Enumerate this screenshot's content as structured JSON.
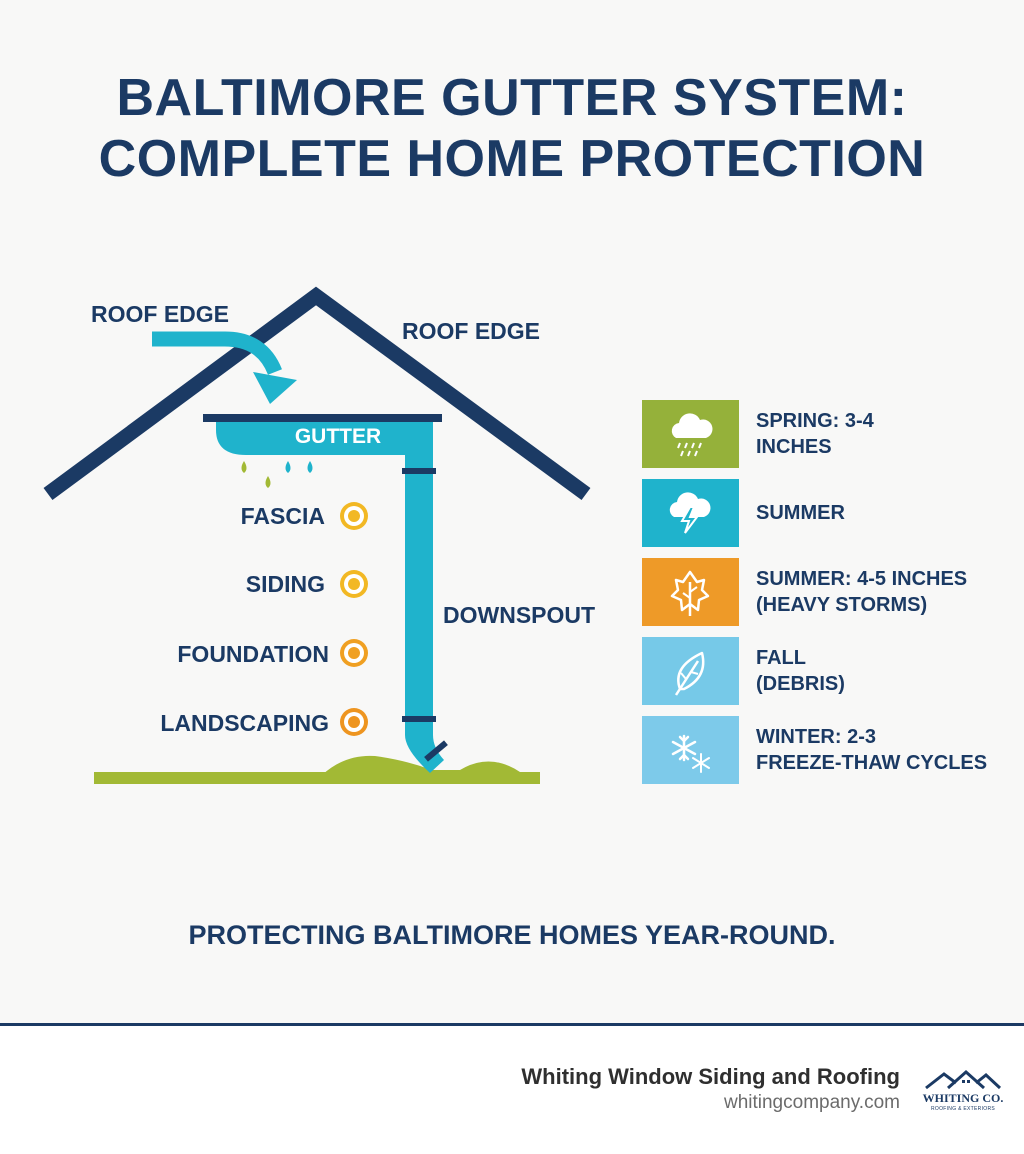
{
  "title": {
    "line1": "BALTIMORE GUTTER SYSTEM:",
    "line2": "COMPLETE HOME PROTECTION"
  },
  "diagram": {
    "labels": {
      "roof_edge_left": "ROOF EDGE",
      "roof_edge_right": "ROOF EDGE",
      "gutter": "GUTTER",
      "downspout": "DOWNSPOUT"
    },
    "protected_items": [
      {
        "label": "FASCIA",
        "color": "#f2b824"
      },
      {
        "label": "SIDING",
        "color": "#f2b824"
      },
      {
        "label": "FOUNDATION",
        "color": "#f0a022"
      },
      {
        "label": "LANDSCAPING",
        "color": "#ee9520"
      }
    ],
    "colors": {
      "roof": "#1b3a64",
      "gutter": "#1fb3cc",
      "ground": "#a2b935",
      "drops": [
        "#a2b935",
        "#1fb3cc"
      ]
    }
  },
  "seasons": [
    {
      "line1": "SPRING: 3-4",
      "line2": "INCHES",
      "icon": "rain-cloud-icon",
      "color": "#95b13a"
    },
    {
      "line1": "SUMMER",
      "line2": "",
      "icon": "storm-cloud-icon",
      "color": "#1fb3cc"
    },
    {
      "line1": "SUMMER: 4-5 INCHES",
      "line2": "(HEAVY STORMS)",
      "icon": "autumn-leaf-icon",
      "color": "#ee9a28"
    },
    {
      "line1": "FALL",
      "line2": "(DEBRIS)",
      "icon": "leaf-icon",
      "color": "#76c9e8"
    },
    {
      "line1": "WINTER: 2-3",
      "line2": "FREEZE-THAW CYCLES",
      "icon": "snowflake-icon",
      "color": "#7dcaea"
    }
  ],
  "tagline": "PROTECTING BALTIMORE HOMES YEAR-ROUND.",
  "footer": {
    "company": "Whiting Window Siding and Roofing",
    "website": "whitingcompany.com",
    "logo_name": "WHITING CO.",
    "logo_sub": "ROOFING & EXTERIORS"
  }
}
